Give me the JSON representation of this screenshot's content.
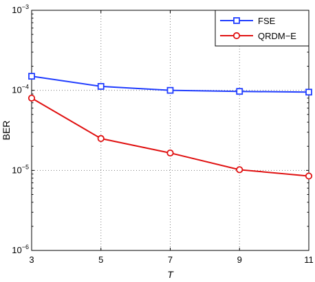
{
  "chart_data": {
    "type": "line",
    "title": "",
    "xlabel": "T",
    "ylabel": "BER",
    "x": [
      3,
      5,
      7,
      9,
      11
    ],
    "xlim": [
      3,
      11
    ],
    "ylim": [
      1e-06,
      0.001
    ],
    "yscale": "log",
    "xticks": [
      "3",
      "5",
      "7",
      "9",
      "11"
    ],
    "yticks": [
      {
        "base": "10",
        "exp": "−6"
      },
      {
        "base": "10",
        "exp": "−5"
      },
      {
        "base": "10",
        "exp": "−4"
      },
      {
        "base": "10",
        "exp": "−3"
      }
    ],
    "grid": true,
    "legend_position": "top-right",
    "series": [
      {
        "name": "FSE",
        "values": [
          0.00015,
          0.000112,
          0.0001,
          9.7e-05,
          9.5e-05
        ],
        "color": "#1f3cff",
        "marker": "square"
      },
      {
        "name": "QRDM−E",
        "values": [
          8e-05,
          2.5e-05,
          1.65e-05,
          1.02e-05,
          8.5e-06
        ],
        "color": "#e01010",
        "marker": "circle"
      }
    ]
  }
}
